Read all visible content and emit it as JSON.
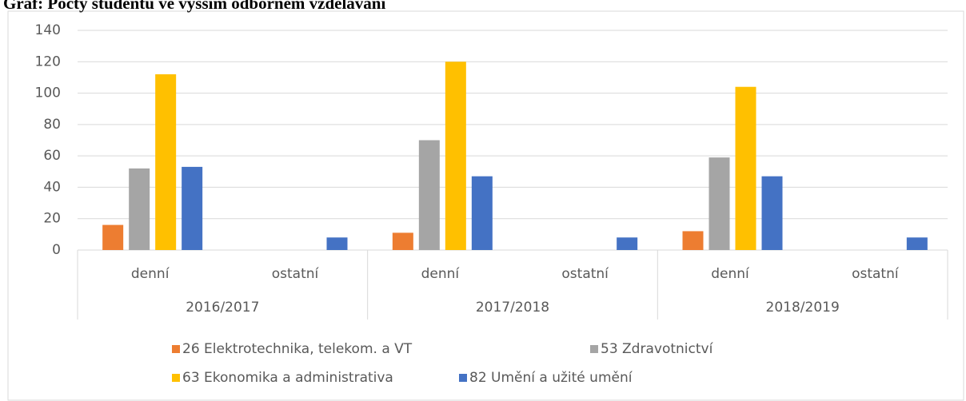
{
  "chart_data": {
    "type": "bar",
    "title": "Graf: Počty studentů ve vyšším odborném vzdělávání",
    "categories": [
      "denní",
      "ostatní",
      "denní",
      "ostatní",
      "denní",
      "ostatní"
    ],
    "groups": [
      "2016/2017",
      "2017/2018",
      "2018/2019"
    ],
    "series": [
      {
        "name": "26 Elektrotechnika, telekom. a VT",
        "color": "#ed7d31",
        "values": [
          16,
          0,
          11,
          0,
          12,
          0
        ]
      },
      {
        "name": "53 Zdravotnictví",
        "color": "#a5a5a5",
        "values": [
          52,
          0,
          70,
          0,
          59,
          0
        ]
      },
      {
        "name": "63 Ekonomika a administrativa",
        "color": "#ffc000",
        "values": [
          112,
          0,
          120,
          0,
          104,
          0
        ]
      },
      {
        "name": "82 Umění a užité umění",
        "color": "#4472c4",
        "values": [
          53,
          8,
          47,
          8,
          47,
          8
        ]
      }
    ],
    "ylim": [
      0,
      140
    ],
    "yticks": [
      0,
      20,
      40,
      60,
      80,
      100,
      120,
      140
    ],
    "grid": true,
    "legend": "bottom"
  }
}
